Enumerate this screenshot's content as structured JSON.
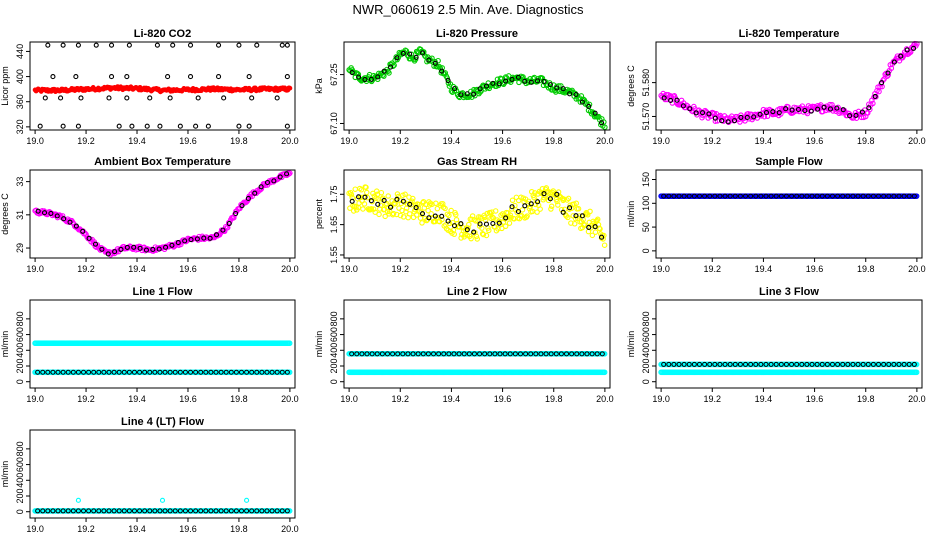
{
  "title": "NWR_060619  2.5 Min. Ave. Diagnostics",
  "colors": {
    "red": "#ff0000",
    "green": "#00cc00",
    "magenta": "#ff00ff",
    "yellow": "#ffff00",
    "cyan": "#00ffff",
    "blue": "#0000ff",
    "black": "#000000"
  },
  "chart_data": [
    {
      "id": "co2",
      "type": "scatter",
      "title": "Li-820 CO2",
      "ylabel": "Licor ppm",
      "xlim": [
        18.98,
        20.02
      ],
      "ylim": [
        315,
        455
      ],
      "xticks": [
        19.0,
        19.2,
        19.4,
        19.6,
        19.8,
        20.0
      ],
      "xticklabels": [
        "19.0",
        "19.2",
        "19.4",
        "19.6",
        "19.8",
        "20.0"
      ],
      "yticks": [
        320,
        360,
        400,
        440
      ],
      "yticklabels": [
        "320",
        "360",
        "400",
        "440"
      ],
      "series": [
        {
          "name": "background",
          "color": "red",
          "style": "dense",
          "x": [
            19.0,
            19.1,
            19.2,
            19.3,
            19.4,
            19.5,
            19.6,
            19.7,
            19.8,
            19.9,
            20.0
          ],
          "y": [
            378,
            378,
            380,
            382,
            381,
            378,
            379,
            380,
            379,
            380,
            380
          ]
        },
        {
          "name": "high",
          "color": "black",
          "style": "points",
          "x": [
            19.05,
            19.11,
            19.17,
            19.24,
            19.3,
            19.37,
            19.48,
            19.54,
            19.61,
            19.72,
            19.8,
            19.87,
            19.97,
            19.99
          ],
          "y": [
            450,
            450,
            450,
            450,
            450,
            450,
            450,
            450,
            450,
            450,
            450,
            450,
            450,
            450
          ]
        },
        {
          "name": "upper",
          "color": "black",
          "style": "points",
          "x": [
            19.07,
            19.16,
            19.3,
            19.36,
            19.52,
            19.61,
            19.72,
            19.84,
            19.99
          ],
          "y": [
            400,
            400,
            400,
            400,
            400,
            400,
            400,
            400,
            400
          ]
        },
        {
          "name": "mid",
          "color": "black",
          "style": "points",
          "x": [
            19.04,
            19.1,
            19.18,
            19.29,
            19.36,
            19.45,
            19.53,
            19.64,
            19.74,
            19.85,
            19.95
          ],
          "y": [
            366,
            366,
            366,
            366,
            366,
            366,
            366,
            366,
            366,
            366,
            366
          ]
        },
        {
          "name": "low",
          "color": "black",
          "style": "points",
          "x": [
            19.02,
            19.11,
            19.17,
            19.33,
            19.38,
            19.44,
            19.49,
            19.57,
            19.63,
            19.68,
            19.8,
            19.84,
            19.99
          ],
          "y": [
            321,
            321,
            321,
            321,
            321,
            321,
            321,
            321,
            321,
            321,
            321,
            321,
            321
          ]
        }
      ]
    },
    {
      "id": "pressure",
      "type": "scatter",
      "title": "Li-820 Pressure",
      "ylabel": "kPa",
      "xlim": [
        18.98,
        20.02
      ],
      "ylim": [
        67.08,
        67.35
      ],
      "xticks": [
        19.0,
        19.2,
        19.4,
        19.6,
        19.8,
        20.0
      ],
      "xticklabels": [
        "19.0",
        "19.2",
        "19.4",
        "19.6",
        "19.8",
        "20.0"
      ],
      "yticks": [
        67.1,
        67.25
      ],
      "yticklabels": [
        "67.10",
        "67.25"
      ],
      "series": [
        {
          "name": "pressure",
          "color": "green",
          "style": "band",
          "band": 0.012,
          "markers": "black",
          "x": [
            19.0,
            19.02,
            19.05,
            19.1,
            19.15,
            19.2,
            19.22,
            19.25,
            19.28,
            19.3,
            19.35,
            19.4,
            19.43,
            19.48,
            19.5,
            19.55,
            19.6,
            19.65,
            19.7,
            19.75,
            19.8,
            19.85,
            19.9,
            19.95,
            19.98,
            20.0
          ],
          "y": [
            67.27,
            67.25,
            67.24,
            67.24,
            67.26,
            67.31,
            67.32,
            67.3,
            67.32,
            67.3,
            67.28,
            67.21,
            67.19,
            67.19,
            67.2,
            67.22,
            67.23,
            67.24,
            67.23,
            67.23,
            67.21,
            67.2,
            67.18,
            67.14,
            67.11,
            67.1
          ]
        }
      ]
    },
    {
      "id": "licor-temp",
      "type": "scatter",
      "title": "Li-820 Temperature",
      "ylabel": "degrees C",
      "xlim": [
        18.98,
        20.02
      ],
      "ylim": [
        51.566,
        51.592
      ],
      "xticks": [
        19.0,
        19.2,
        19.4,
        19.6,
        19.8,
        20.0
      ],
      "xticklabels": [
        "19.0",
        "19.2",
        "19.4",
        "19.6",
        "19.8",
        "20.0"
      ],
      "yticks": [
        51.57,
        51.58
      ],
      "yticklabels": [
        "51.570",
        "51.580"
      ],
      "series": [
        {
          "name": "temperature",
          "color": "magenta",
          "style": "band",
          "band": 0.0012,
          "markers": "black",
          "x": [
            19.0,
            19.05,
            19.1,
            19.15,
            19.2,
            19.25,
            19.3,
            19.35,
            19.4,
            19.45,
            19.5,
            19.55,
            19.6,
            19.65,
            19.7,
            19.75,
            19.8,
            19.85,
            19.9,
            19.95,
            20.0
          ],
          "y": [
            51.576,
            51.575,
            51.573,
            51.571,
            51.57,
            51.569,
            51.569,
            51.57,
            51.571,
            51.571,
            51.572,
            51.572,
            51.572,
            51.573,
            51.572,
            51.57,
            51.571,
            51.578,
            51.585,
            51.589,
            51.591
          ]
        }
      ]
    },
    {
      "id": "ambient-temp",
      "type": "scatter",
      "title": "Ambient Box Temperature",
      "ylabel": "degrees C",
      "xlim": [
        18.98,
        20.02
      ],
      "ylim": [
        28.4,
        33.7
      ],
      "xticks": [
        19.0,
        19.2,
        19.4,
        19.6,
        19.8,
        20.0
      ],
      "xticklabels": [
        "19.0",
        "19.2",
        "19.4",
        "19.6",
        "19.8",
        "20.0"
      ],
      "yticks": [
        29,
        31,
        33
      ],
      "yticklabels": [
        "29",
        "31",
        "33"
      ],
      "series": [
        {
          "name": "temperature",
          "color": "magenta",
          "style": "band",
          "band": 0.12,
          "markers": "black",
          "x": [
            19.0,
            19.05,
            19.1,
            19.15,
            19.2,
            19.25,
            19.28,
            19.3,
            19.35,
            19.4,
            19.45,
            19.5,
            19.55,
            19.6,
            19.65,
            19.7,
            19.75,
            19.8,
            19.85,
            19.9,
            19.95,
            20.0
          ],
          "y": [
            31.2,
            31.1,
            30.9,
            30.5,
            29.8,
            29.0,
            28.7,
            28.7,
            29.0,
            29.0,
            28.9,
            29.0,
            29.2,
            29.5,
            29.6,
            29.6,
            30.2,
            31.4,
            32.2,
            32.8,
            33.2,
            33.5
          ]
        }
      ]
    },
    {
      "id": "rh",
      "type": "scatter",
      "title": "Gas Stream RH",
      "ylabel": "percent",
      "xlim": [
        18.98,
        20.02
      ],
      "ylim": [
        1.54,
        1.83
      ],
      "xticks": [
        19.0,
        19.2,
        19.4,
        19.6,
        19.8,
        20.0
      ],
      "xticklabels": [
        "19.0",
        "19.2",
        "19.4",
        "19.6",
        "19.8",
        "20.0"
      ],
      "yticks": [
        1.55,
        1.65,
        1.75
      ],
      "yticklabels": [
        "1.55",
        "1.65",
        "1.75"
      ],
      "series": [
        {
          "name": "rh",
          "color": "yellow",
          "style": "noisy",
          "band": 0.04,
          "markers": "black",
          "x": [
            19.0,
            19.05,
            19.1,
            19.15,
            19.2,
            19.25,
            19.3,
            19.35,
            19.4,
            19.45,
            19.5,
            19.55,
            19.6,
            19.65,
            19.7,
            19.75,
            19.8,
            19.85,
            19.9,
            19.95,
            20.0
          ],
          "y": [
            1.72,
            1.74,
            1.73,
            1.71,
            1.72,
            1.7,
            1.69,
            1.7,
            1.66,
            1.64,
            1.64,
            1.65,
            1.67,
            1.7,
            1.71,
            1.74,
            1.74,
            1.7,
            1.68,
            1.65,
            1.6
          ]
        }
      ]
    },
    {
      "id": "sample-flow",
      "type": "scatter",
      "title": "Sample Flow",
      "ylabel": "ml/min",
      "xlim": [
        18.98,
        20.02
      ],
      "ylim": [
        -15,
        170
      ],
      "xticks": [
        19.0,
        19.2,
        19.4,
        19.6,
        19.8,
        20.0
      ],
      "xticklabels": [
        "19.0",
        "19.2",
        "19.4",
        "19.6",
        "19.8",
        "20.0"
      ],
      "yticks": [
        0,
        50,
        100,
        150
      ],
      "yticklabels": [
        "0",
        "50",
        "100",
        "150"
      ],
      "series": [
        {
          "name": "flow",
          "color": "blue",
          "style": "flat",
          "markers": "black",
          "x": [
            19.0,
            20.0
          ],
          "y": [
            115,
            115
          ]
        }
      ]
    },
    {
      "id": "line1",
      "type": "scatter",
      "title": "Line 1 Flow",
      "ylabel": "ml/min",
      "xlim": [
        18.98,
        20.02
      ],
      "ylim": [
        -80,
        1040
      ],
      "xticks": [
        19.0,
        19.2,
        19.4,
        19.6,
        19.8,
        20.0
      ],
      "xticklabels": [
        "19.0",
        "19.2",
        "19.4",
        "19.6",
        "19.8",
        "20.0"
      ],
      "yticks": [
        0,
        200,
        400,
        600,
        800
      ],
      "yticklabels": [
        "0",
        "200",
        "400",
        "600",
        "800"
      ],
      "series": [
        {
          "name": "upper",
          "color": "cyan",
          "style": "flat",
          "x": [
            19.0,
            20.0
          ],
          "y": [
            490,
            490
          ]
        },
        {
          "name": "lower",
          "color": "cyan",
          "style": "flat",
          "markers": "black",
          "x": [
            19.0,
            20.0
          ],
          "y": [
            120,
            120
          ]
        }
      ]
    },
    {
      "id": "line2",
      "type": "scatter",
      "title": "Line 2 Flow",
      "ylabel": "ml/min",
      "xlim": [
        18.98,
        20.02
      ],
      "ylim": [
        -80,
        1040
      ],
      "xticks": [
        19.0,
        19.2,
        19.4,
        19.6,
        19.8,
        20.0
      ],
      "xticklabels": [
        "19.0",
        "19.2",
        "19.4",
        "19.6",
        "19.8",
        "20.0"
      ],
      "yticks": [
        0,
        200,
        400,
        600,
        800
      ],
      "yticklabels": [
        "0",
        "200",
        "400",
        "600",
        "800"
      ],
      "series": [
        {
          "name": "upper",
          "color": "cyan",
          "style": "flat",
          "markers": "black",
          "x": [
            19.0,
            20.0
          ],
          "y": [
            355,
            355
          ]
        },
        {
          "name": "lower",
          "color": "cyan",
          "style": "flat",
          "x": [
            19.0,
            20.0
          ],
          "y": [
            120,
            120
          ]
        }
      ]
    },
    {
      "id": "line3",
      "type": "scatter",
      "title": "Line 3 Flow",
      "ylabel": "ml/min",
      "xlim": [
        18.98,
        20.02
      ],
      "ylim": [
        -80,
        1040
      ],
      "xticks": [
        19.0,
        19.2,
        19.4,
        19.6,
        19.8,
        20.0
      ],
      "xticklabels": [
        "19.0",
        "19.2",
        "19.4",
        "19.6",
        "19.8",
        "20.0"
      ],
      "yticks": [
        0,
        200,
        400,
        600,
        800
      ],
      "yticklabels": [
        "0",
        "200",
        "400",
        "600",
        "800"
      ],
      "series": [
        {
          "name": "upper",
          "color": "cyan",
          "style": "flat",
          "markers": "black",
          "x": [
            19.0,
            20.0
          ],
          "y": [
            220,
            220
          ]
        },
        {
          "name": "lower",
          "color": "cyan",
          "style": "flat",
          "x": [
            19.0,
            20.0
          ],
          "y": [
            120,
            120
          ]
        }
      ]
    },
    {
      "id": "line4",
      "type": "scatter",
      "title": "Line 4 (LT) Flow",
      "ylabel": "ml/min",
      "xlim": [
        18.98,
        20.02
      ],
      "ylim": [
        -80,
        1040
      ],
      "xticks": [
        19.0,
        19.2,
        19.4,
        19.6,
        19.8,
        20.0
      ],
      "xticklabels": [
        "19.0",
        "19.2",
        "19.4",
        "19.6",
        "19.8",
        "20.0"
      ],
      "yticks": [
        0,
        200,
        400,
        600,
        800
      ],
      "yticklabels": [
        "0",
        "200",
        "400",
        "600",
        "800"
      ],
      "series": [
        {
          "name": "flow",
          "color": "cyan",
          "style": "flat",
          "markers": "black",
          "x": [
            19.0,
            20.0
          ],
          "y": [
            10,
            10
          ]
        },
        {
          "name": "spikes",
          "color": "cyan",
          "style": "points",
          "x": [
            19.17,
            19.5,
            19.83
          ],
          "y": [
            145,
            145,
            145
          ]
        }
      ]
    }
  ]
}
